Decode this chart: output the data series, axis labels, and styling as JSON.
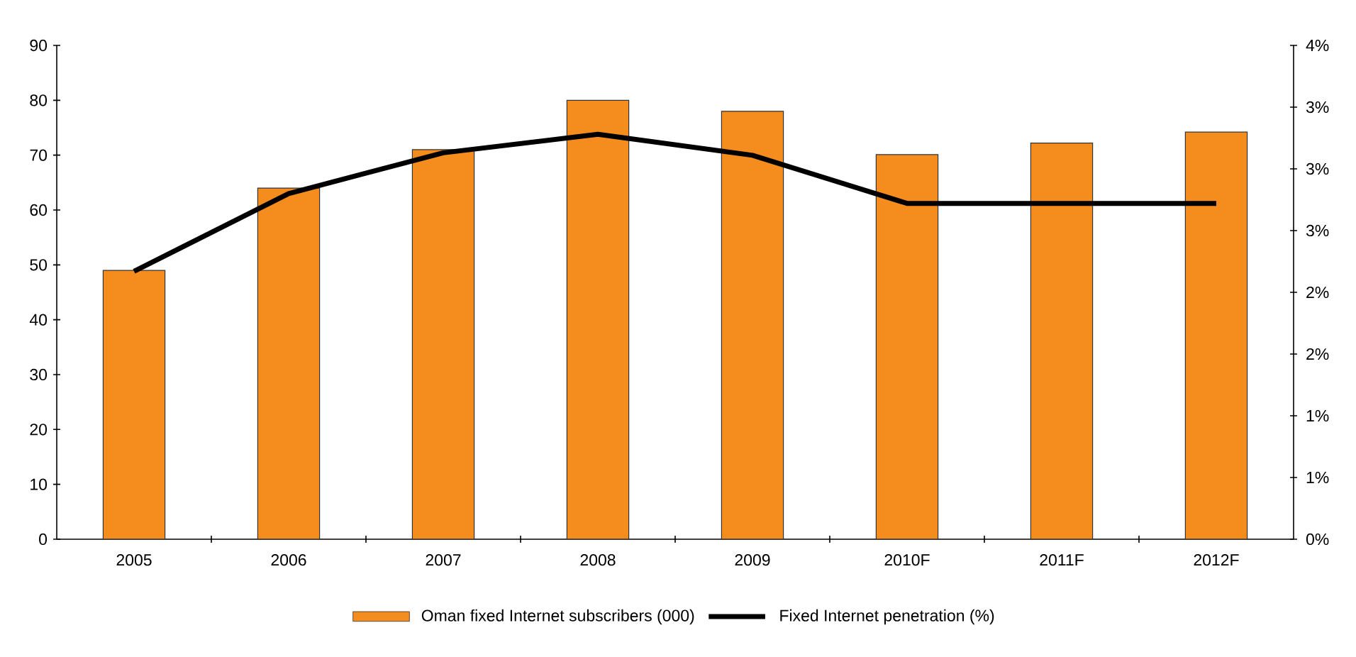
{
  "chart_data": {
    "type": "bar",
    "categories": [
      "2005",
      "2006",
      "2007",
      "2008",
      "2009",
      "2010F",
      "2011F",
      "2012F"
    ],
    "series": [
      {
        "name": "Oman fixed Internet subscribers (000)",
        "color": "#f58d1e",
        "values": [
          49,
          64,
          71,
          80,
          78,
          70.1,
          72.2,
          74.2
        ]
      },
      {
        "name": "Fixed Internet penetration (%)",
        "type": "line",
        "axis": "y2",
        "color": "#000000",
        "marker": "none",
        "line_style": "solid",
        "values": [
          2.17,
          2.8,
          3.13,
          3.28,
          3.11,
          2.72,
          2.72,
          2.72
        ]
      }
    ],
    "ylim": [
      0,
      90
    ],
    "yticks": [
      0,
      10,
      20,
      30,
      40,
      50,
      60,
      70,
      80,
      90
    ],
    "y2lim": [
      0,
      4
    ],
    "y2ticks": [
      {
        "value": 0,
        "label": "0%"
      },
      {
        "value": 0.5,
        "label": "1%"
      },
      {
        "value": 1,
        "label": "1%"
      },
      {
        "value": 1.5,
        "label": "2%"
      },
      {
        "value": 2,
        "label": "2%"
      },
      {
        "value": 2.5,
        "label": "3%"
      },
      {
        "value": 3,
        "label": "3%"
      },
      {
        "value": 3.5,
        "label": "3%"
      },
      {
        "value": 4,
        "label": "4%"
      }
    ],
    "grid": false,
    "legend": "bottom"
  }
}
